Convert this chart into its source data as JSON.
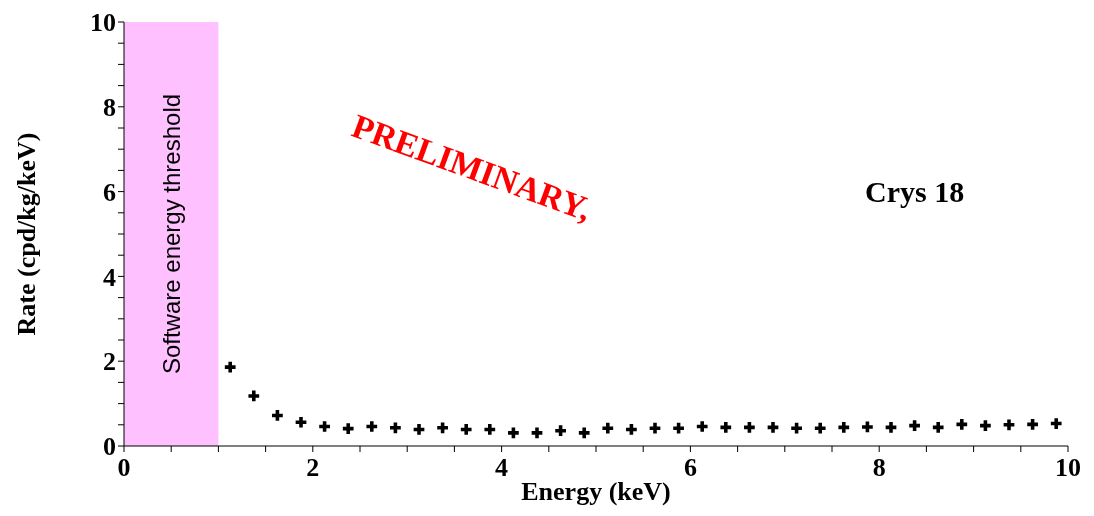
{
  "chart_data": {
    "type": "scatter",
    "xlabel": "Energy (keV)",
    "ylabel": "Rate (cpd/kg/keV)",
    "x": [
      1.125,
      1.375,
      1.625,
      1.875,
      2.125,
      2.375,
      2.625,
      2.875,
      3.125,
      3.375,
      3.625,
      3.875,
      4.125,
      4.375,
      4.625,
      4.875,
      5.125,
      5.375,
      5.625,
      5.875,
      6.125,
      6.375,
      6.625,
      6.875,
      7.125,
      7.375,
      7.625,
      7.875,
      8.125,
      8.375,
      8.625,
      8.875,
      9.125,
      9.375,
      9.625,
      9.875
    ],
    "series": [
      {
        "color": "#000000",
        "values": [
          1.86,
          1.18,
          0.72,
          0.56,
          0.46,
          0.41,
          0.46,
          0.43,
          0.39,
          0.43,
          0.39,
          0.39,
          0.31,
          0.31,
          0.36,
          0.31,
          0.42,
          0.39,
          0.42,
          0.42,
          0.46,
          0.44,
          0.44,
          0.44,
          0.42,
          0.42,
          0.44,
          0.45,
          0.44,
          0.48,
          0.44,
          0.51,
          0.48,
          0.5,
          0.51,
          0.53
        ]
      }
    ],
    "xlim": [
      0,
      10
    ],
    "ylim": [
      0,
      10
    ],
    "xticks": [
      0,
      {
        "value": 0.5,
        "label": null
      },
      {
        "value": 1,
        "label": null
      },
      {
        "value": 1.5,
        "label": null
      },
      2,
      {
        "value": 2.5,
        "label": null
      },
      {
        "value": 3,
        "label": null
      },
      {
        "value": 3.5,
        "label": null
      },
      4,
      {
        "value": 4.5,
        "label": null
      },
      {
        "value": 5,
        "label": null
      },
      {
        "value": 5.5,
        "label": null
      },
      6,
      {
        "value": 6.5,
        "label": null
      },
      {
        "value": 7,
        "label": null
      },
      {
        "value": 7.5,
        "label": null
      },
      8,
      {
        "value": 8.5,
        "label": null
      },
      {
        "value": 9,
        "label": null
      },
      {
        "value": 9.5,
        "label": null
      },
      10
    ],
    "yticks": [
      0,
      {
        "value": 0.5,
        "label": null
      },
      {
        "value": 1,
        "label": null
      },
      {
        "value": 1.5,
        "label": null
      },
      2,
      {
        "value": 2.5,
        "label": null
      },
      {
        "value": 3,
        "label": null
      },
      {
        "value": 3.5,
        "label": null
      },
      4,
      {
        "value": 4.5,
        "label": null
      },
      {
        "value": 5,
        "label": null
      },
      {
        "value": 5.5,
        "label": null
      },
      6,
      {
        "value": 6.5,
        "label": null
      },
      {
        "value": 7,
        "label": null
      },
      {
        "value": 7.5,
        "label": null
      },
      8,
      {
        "value": 8.5,
        "label": null
      },
      {
        "value": 9,
        "label": null
      },
      {
        "value": 9.5,
        "label": null
      },
      10
    ],
    "bands": [
      {
        "axis": "x",
        "from": 0,
        "to": 1,
        "label": "Software energy threshold",
        "color": "#ffc0ff"
      }
    ],
    "annotations": [
      "PRELIMINARY,",
      "Crys 18"
    ],
    "marker": "cross",
    "grid": false,
    "legend": false
  }
}
